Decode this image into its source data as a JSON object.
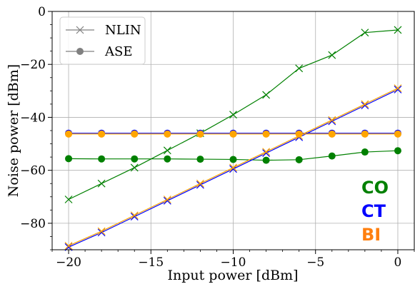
{
  "chart_data": {
    "type": "line",
    "xlabel": "Input power [dBm]",
    "ylabel": "Noise power [dBm]",
    "xlim": [
      -21,
      1
    ],
    "ylim": [
      -90,
      0
    ],
    "xticks": [
      -20,
      -15,
      -10,
      -5,
      0
    ],
    "yticks": [
      0,
      -20,
      -40,
      -60,
      -80
    ],
    "x_tick_labels": [
      "−20",
      "−15",
      "−10",
      "−5",
      "0"
    ],
    "y_tick_labels": [
      "0",
      "−20",
      "−40",
      "−60",
      "−80"
    ],
    "grid": true,
    "x": [
      -20,
      -18,
      -16,
      -14,
      -12,
      -10,
      -8,
      -6,
      -4,
      -2,
      0
    ],
    "series": [
      {
        "key": "co_nlin",
        "group": "CO",
        "kind": "NLIN",
        "color": "#008000",
        "values": [
          -71,
          -65,
          -59,
          -52.5,
          -46,
          -39,
          -31.5,
          -21.5,
          -16.5,
          -8,
          -7
        ]
      },
      {
        "key": "co_ase",
        "group": "CO",
        "kind": "ASE",
        "color": "#008000",
        "values": [
          -55.6,
          -55.7,
          -55.7,
          -55.7,
          -55.8,
          -55.9,
          -56.2,
          -56,
          -54.6,
          -53.1,
          -52.6
        ]
      },
      {
        "key": "ct_nlin",
        "group": "CT",
        "kind": "NLIN",
        "color": "#0000ff",
        "values": [
          -89,
          -83.5,
          -77.5,
          -71.5,
          -65.5,
          -59.5,
          -53.5,
          -47.5,
          -41.5,
          -35.5,
          -29.5
        ]
      },
      {
        "key": "ct_ase",
        "group": "CT",
        "kind": "ASE",
        "color": "#0000ff",
        "values": [
          -46,
          -46,
          -46,
          -46,
          -46,
          -46,
          -46,
          -46,
          -46,
          -46,
          -46
        ]
      },
      {
        "key": "bi_nlin",
        "group": "BI",
        "kind": "NLIN",
        "color": "#ffa500",
        "values": [
          -88.5,
          -83,
          -77,
          -71,
          -65,
          -59,
          -53,
          -47,
          -41,
          -35,
          -29
        ]
      },
      {
        "key": "bi_ase",
        "group": "BI",
        "kind": "ASE",
        "color": "#ffa500",
        "values": [
          -46.3,
          -46.3,
          -46.3,
          -46.3,
          -46.3,
          -46.3,
          -46.3,
          -46.3,
          -46.3,
          -46.3,
          -46.3
        ]
      }
    ],
    "legend": {
      "placement": "top-left",
      "entries": [
        {
          "label": "NLIN",
          "marker": "x"
        },
        {
          "label": "ASE",
          "marker": "o"
        }
      ]
    },
    "annotations": [
      {
        "text": "CO",
        "color": "#008000"
      },
      {
        "text": "CT",
        "color": "#0000ff"
      },
      {
        "text": "BI",
        "color": "#ff7f0e"
      }
    ]
  }
}
